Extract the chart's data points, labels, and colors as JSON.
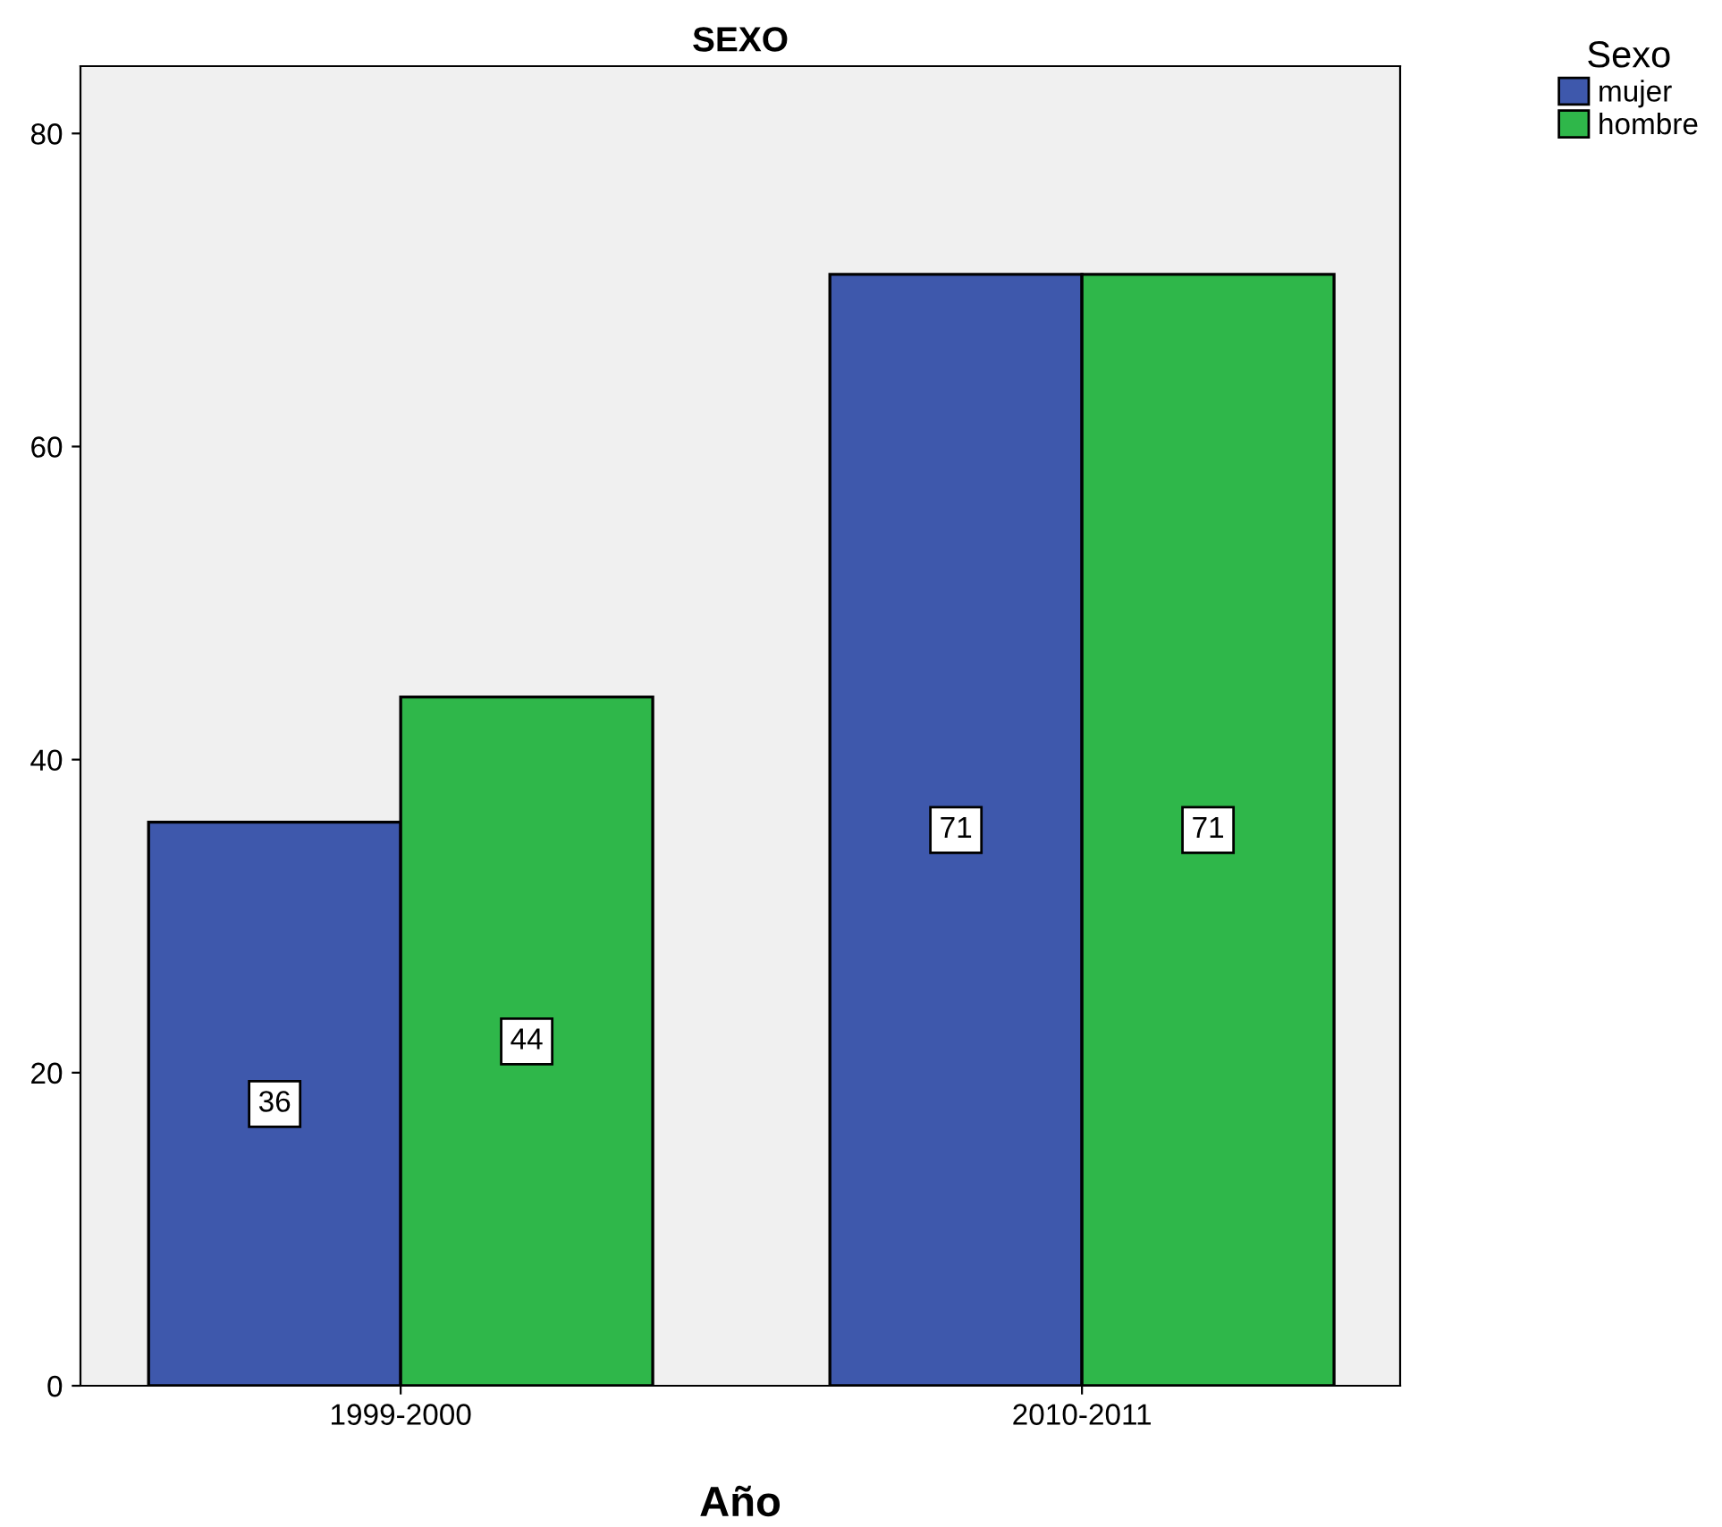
{
  "chart_data": {
    "type": "bar",
    "title": "SEXO",
    "xlabel": "Año",
    "legend_title": "Sexo",
    "categories": [
      "1999-2000",
      "2010-2011"
    ],
    "series": [
      {
        "name": "mujer",
        "color": "#3e58ac",
        "values": [
          36,
          71
        ]
      },
      {
        "name": "hombre",
        "color": "#2fb74a",
        "values": [
          44,
          71
        ]
      }
    ],
    "ylim": [
      0,
      84.3
    ],
    "yticks": [
      0,
      20,
      40,
      60,
      80
    ],
    "grid": false,
    "legend": "right",
    "data_labels": true
  }
}
